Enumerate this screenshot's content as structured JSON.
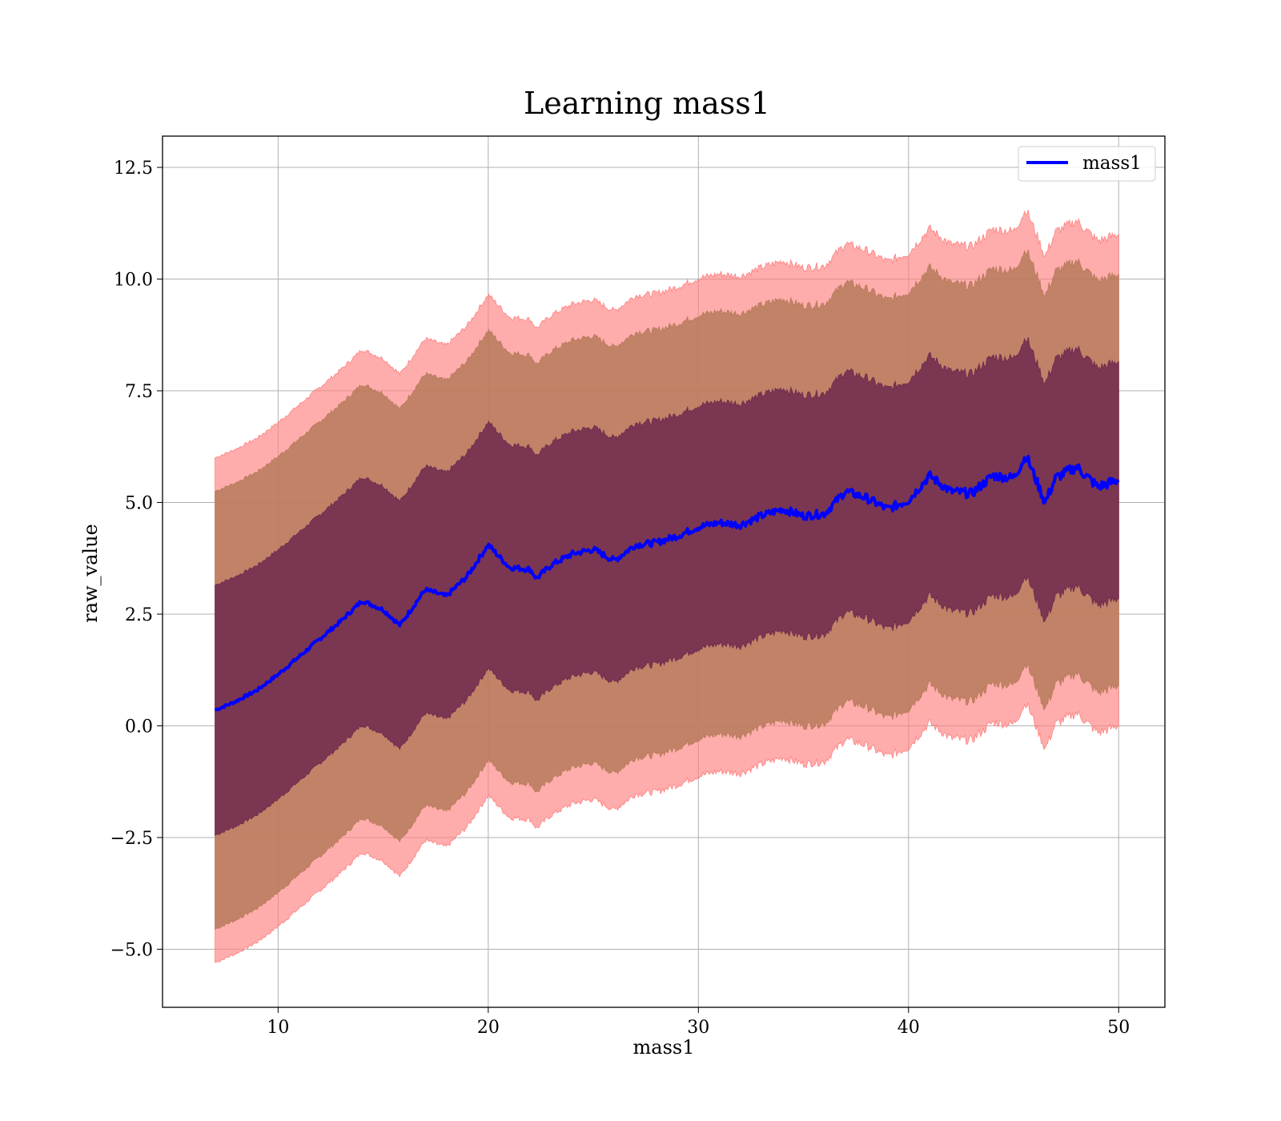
{
  "chart_data": {
    "type": "area",
    "title": "Learning mass1",
    "xlabel": "mass1",
    "ylabel": "raw_value",
    "xlim": [
      4.5,
      52.2
    ],
    "ylim": [
      -6.3,
      13.2
    ],
    "xticks": [
      10,
      20,
      30,
      40,
      50
    ],
    "xtick_labels": [
      "10",
      "20",
      "30",
      "40",
      "50"
    ],
    "yticks": [
      -5.0,
      -2.5,
      0.0,
      2.5,
      5.0,
      7.5,
      10.0,
      12.5
    ],
    "ytick_labels": [
      "−5.0",
      "−2.5",
      "0.0",
      "2.5",
      "5.0",
      "7.5",
      "10.0",
      "12.5"
    ],
    "grid": true,
    "legend": {
      "position": "top-right",
      "entries": [
        "mass1"
      ]
    },
    "colors": {
      "line": "#0000ff",
      "band_1sigma": "#6e2a4e",
      "band_2sigma": "#b77a5a",
      "band_3sigma": "#ff8080"
    },
    "series": [
      {
        "name": "mass1",
        "x": [
          7,
          8,
          9,
          10,
          11,
          12,
          13,
          14,
          15,
          15.8,
          17,
          18,
          19,
          20,
          21,
          22,
          22.3,
          23,
          24,
          25,
          26,
          27,
          28,
          29,
          30,
          31,
          32,
          33,
          34,
          35,
          36,
          37,
          38,
          39,
          40,
          41,
          42,
          43,
          44,
          45,
          45.6,
          46.5,
          47,
          48,
          49,
          50
        ],
        "y": [
          0.35,
          0.55,
          0.8,
          1.15,
          1.55,
          1.95,
          2.35,
          2.8,
          2.6,
          2.25,
          3.05,
          2.9,
          3.35,
          4.05,
          3.55,
          3.5,
          3.3,
          3.6,
          3.85,
          3.95,
          3.7,
          4.05,
          4.1,
          4.25,
          4.45,
          4.55,
          4.5,
          4.7,
          4.85,
          4.7,
          4.75,
          5.25,
          5.1,
          4.85,
          5.05,
          5.6,
          5.25,
          5.2,
          5.6,
          5.55,
          6.05,
          5.0,
          5.55,
          5.8,
          5.35,
          5.5
        ]
      }
    ],
    "bands": [
      {
        "level": "1sigma",
        "half_width_start": 2.8,
        "half_width_end": 2.65
      },
      {
        "level": "2sigma",
        "half_width_start": 4.9,
        "half_width_end": 4.6
      },
      {
        "level": "3sigma",
        "half_width_start": 5.65,
        "half_width_end": 5.5
      }
    ]
  }
}
